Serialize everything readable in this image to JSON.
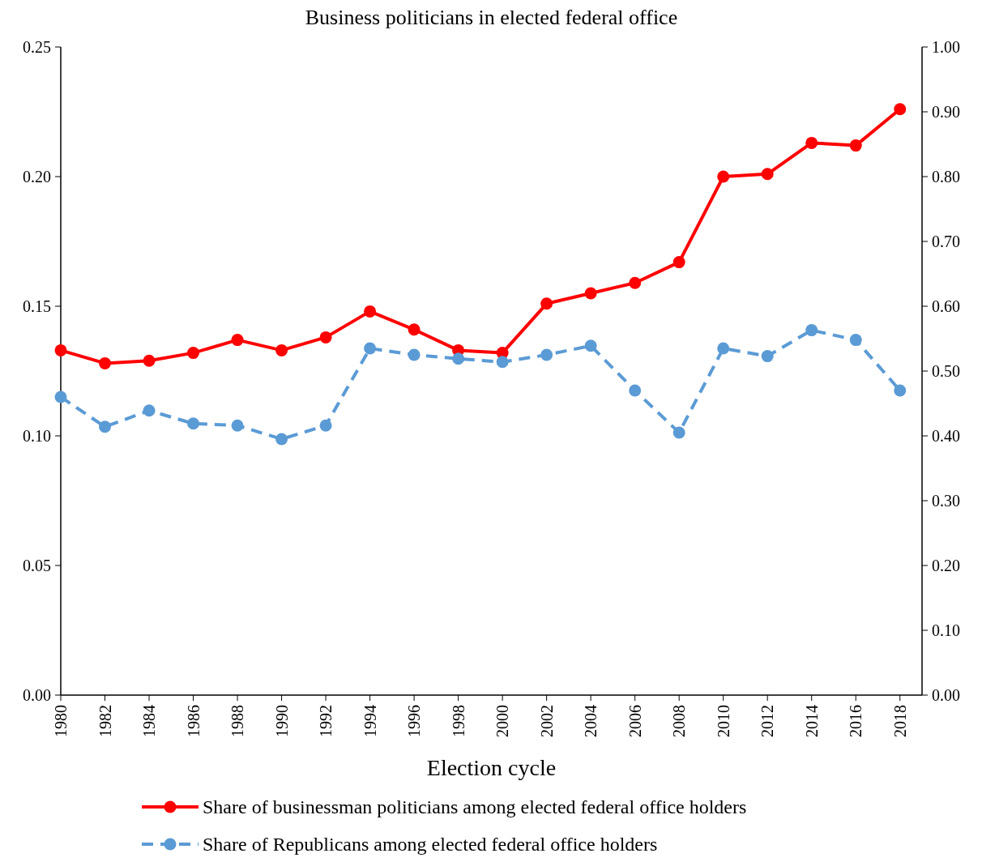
{
  "chart_data": {
    "type": "line",
    "title": "Business politicians in elected federal office",
    "xlabel": "Election cycle",
    "categories": [
      "1980",
      "1982",
      "1984",
      "1986",
      "1988",
      "1990",
      "1992",
      "1994",
      "1996",
      "1998",
      "2000",
      "2002",
      "2004",
      "2006",
      "2008",
      "2010",
      "2012",
      "2014",
      "2016",
      "2018"
    ],
    "series": [
      {
        "name": "Share of businessman politicians among elected federal office holders",
        "color": "#ff0000",
        "line_style": "solid",
        "marker": "circle",
        "values": [
          0.133,
          0.128,
          0.129,
          0.132,
          0.137,
          0.133,
          0.138,
          0.148,
          0.141,
          0.133,
          0.132,
          0.151,
          0.155,
          0.159,
          0.167,
          0.2,
          0.201,
          0.213,
          0.212,
          0.226
        ]
      },
      {
        "name": "Share of Republicans among elected federal office holders",
        "color": "#5b9bd5",
        "line_style": "dashed",
        "marker": "circle",
        "axis": "y2",
        "values": [
          0.46,
          0.414,
          0.439,
          0.419,
          0.416,
          0.395,
          0.416,
          0.535,
          0.525,
          0.519,
          0.514,
          0.525,
          0.539,
          0.47,
          0.405,
          0.535,
          0.523,
          0.563,
          0.548,
          0.47
        ]
      }
    ],
    "ylim": [
      0,
      0.25
    ],
    "yticks": [
      {
        "value": 0,
        "label": "0.00"
      },
      {
        "value": 0.05,
        "label": "0.05"
      },
      {
        "value": 0.1,
        "label": "0.10"
      },
      {
        "value": 0.15,
        "label": "0.15"
      },
      {
        "value": 0.2,
        "label": "0.20"
      },
      {
        "value": 0.25,
        "label": "0.25"
      }
    ],
    "y2lim": [
      0,
      1
    ],
    "y2ticks": [
      {
        "value": 0,
        "label": "0.00"
      },
      {
        "value": 0.1,
        "label": "0.10"
      },
      {
        "value": 0.2,
        "label": "0.20"
      },
      {
        "value": 0.3,
        "label": "0.30"
      },
      {
        "value": 0.4,
        "label": "0.40"
      },
      {
        "value": 0.5,
        "label": "0.50"
      },
      {
        "value": 0.6,
        "label": "0.60"
      },
      {
        "value": 0.7,
        "label": "0.70"
      },
      {
        "value": 0.8,
        "label": "0.80"
      },
      {
        "value": 0.9,
        "label": "0.90"
      },
      {
        "value": 1,
        "label": "1.00"
      }
    ],
    "grid": false,
    "legend": "bottom"
  }
}
